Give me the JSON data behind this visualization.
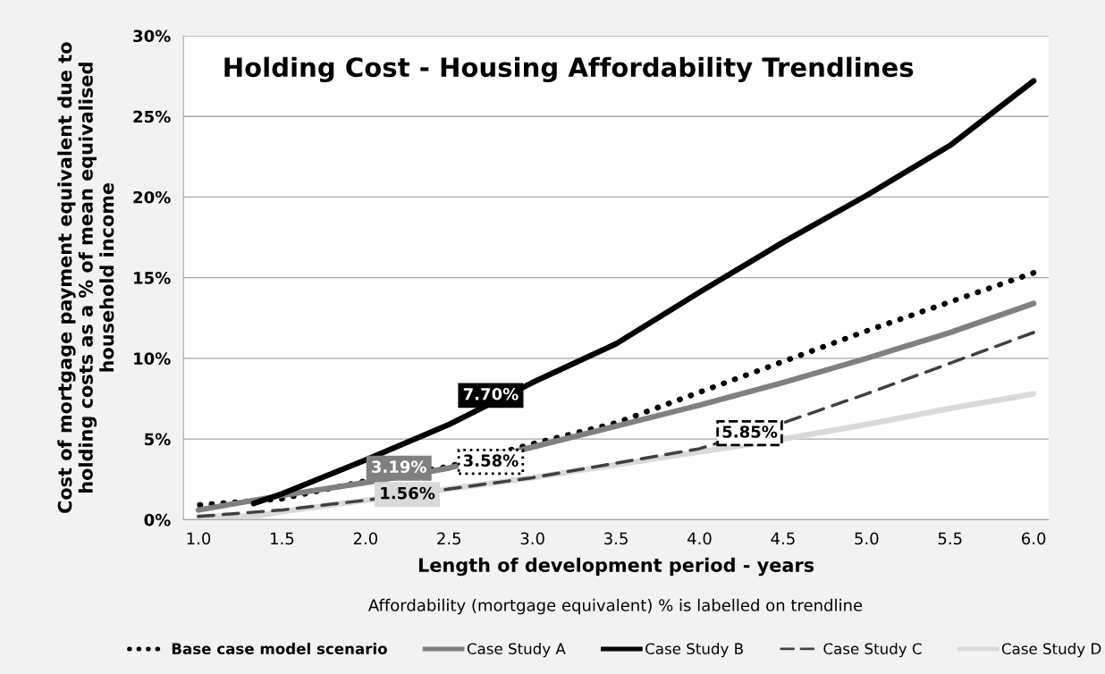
{
  "chart_data": {
    "type": "line",
    "title": "Holding Cost - Housing Affordability Trendlines",
    "xlabel": "Length of development period - years",
    "ylabel": "Cost of mortgage payment equivalent due to\nholding costs as a % of mean equivalised\nhousehold income",
    "x": [
      1.0,
      1.5,
      2.0,
      2.5,
      3.0,
      3.5,
      4.0,
      4.5,
      5.0,
      5.5,
      6.0
    ],
    "series": [
      {
        "name": "Base case model scenario",
        "color": "#000000",
        "line_style": "dotted",
        "values": [
          0.9,
          1.3,
          2.4,
          3.3,
          4.7,
          6.0,
          7.9,
          9.8,
          11.7,
          13.5,
          15.3
        ]
      },
      {
        "name": "Case Study A",
        "color": "#808080",
        "line_style": "solid",
        "values": [
          0.6,
          1.5,
          2.3,
          3.2,
          4.5,
          5.8,
          7.1,
          8.5,
          10.0,
          11.6,
          13.4
        ]
      },
      {
        "name": "Case Study B",
        "color": "#000000",
        "line_style": "solid",
        "x": [
          1.33,
          1.5,
          2.0,
          2.5,
          3.0,
          3.5,
          4.0,
          4.5,
          5.0,
          5.5,
          6.0
        ],
        "values": [
          1.0,
          1.6,
          3.7,
          5.9,
          8.5,
          10.9,
          14.1,
          17.2,
          20.1,
          23.2,
          27.2
        ]
      },
      {
        "name": "Case Study C",
        "color": "#404040",
        "line_style": "dashed",
        "values": [
          0.2,
          0.6,
          1.2,
          1.9,
          2.6,
          3.5,
          4.4,
          6.0,
          7.8,
          9.7,
          11.6
        ]
      },
      {
        "name": "Case Study D",
        "color": "#d9d9d9",
        "line_style": "solid",
        "x": [
          1.0,
          1.33,
          1.5,
          2.0,
          2.5,
          3.0,
          3.5,
          4.0,
          4.5,
          5.0,
          5.5,
          6.0
        ],
        "values": [
          0.2,
          0.2,
          0.5,
          1.2,
          1.9,
          2.6,
          3.4,
          4.2,
          5.0,
          5.9,
          6.9,
          7.8
        ]
      }
    ],
    "annotations": [
      {
        "text": "3.58%",
        "x": 2.75,
        "y": 3.58
      },
      {
        "text": "3.19%",
        "x": 2.2,
        "y": 3.19
      },
      {
        "text": "7.70%",
        "x": 2.75,
        "y": 7.7
      },
      {
        "text": "5.85%",
        "x": 4.3,
        "y": 5.36
      },
      {
        "text": "1.56%",
        "x": 2.25,
        "y": 1.56
      },
      "Affordability (mortgage equivalent) % is labelled on trendline"
    ],
    "xlim": [
      0.91,
      6.09
    ],
    "xticks": [
      {
        "value": 1.0,
        "label": "1.0"
      },
      {
        "value": 1.5,
        "label": "1.5"
      },
      {
        "value": 2.0,
        "label": "2.0"
      },
      {
        "value": 2.5,
        "label": "2.5"
      },
      {
        "value": 3.0,
        "label": "3.0"
      },
      {
        "value": 3.5,
        "label": "3.5"
      },
      {
        "value": 4.0,
        "label": "4.0"
      },
      {
        "value": 4.5,
        "label": "4.5"
      },
      {
        "value": 5.0,
        "label": "5.0"
      },
      {
        "value": 5.5,
        "label": "5.5"
      },
      {
        "value": 6.0,
        "label": "6.0"
      }
    ],
    "ylim": [
      0,
      30
    ],
    "yticks": [
      {
        "value": 0,
        "label": "0%"
      },
      {
        "value": 5,
        "label": "5%"
      },
      {
        "value": 10,
        "label": "10%"
      },
      {
        "value": 15,
        "label": "15%"
      },
      {
        "value": 20,
        "label": "20%"
      },
      {
        "value": 25,
        "label": "25%"
      },
      {
        "value": 30,
        "label": "30%"
      }
    ],
    "grid": "y",
    "legend": "bottom",
    "marker": "none"
  }
}
